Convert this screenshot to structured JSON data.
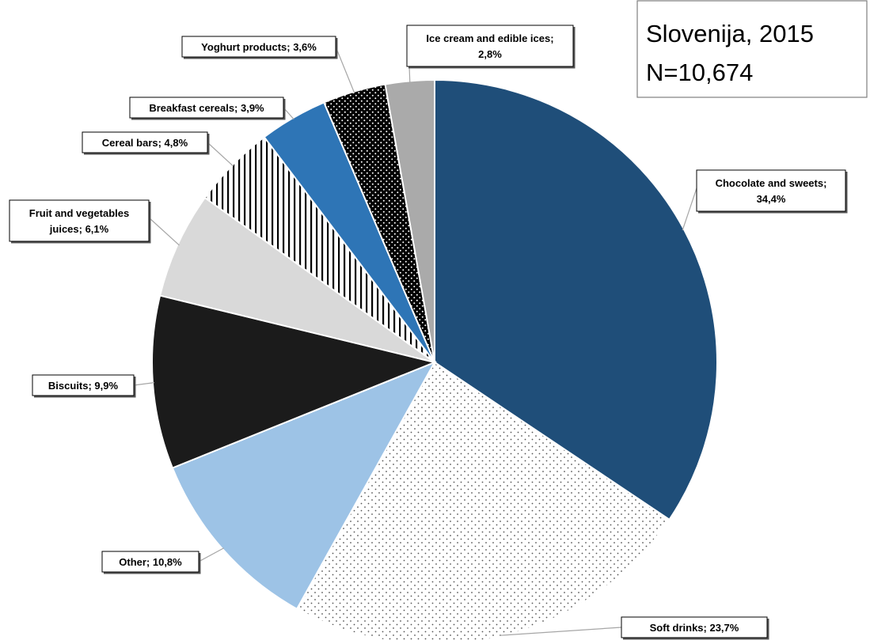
{
  "chart_data": {
    "type": "pie",
    "title": "Slovenija, 2015",
    "subtitle": "N=10,674",
    "slices": [
      {
        "name": "Chocolate and sweets",
        "value": 34.4,
        "label_lines": [
          "Chocolate and sweets;",
          "34,4%"
        ],
        "color": "#1f4e79",
        "pattern": "solid"
      },
      {
        "name": "Soft drinks",
        "value": 23.7,
        "label_lines": [
          "Soft drinks; 23,7%"
        ],
        "color": "#ffffff",
        "pattern": "dots"
      },
      {
        "name": "Other",
        "value": 10.8,
        "label_lines": [
          "Other; 10,8%"
        ],
        "color": "#9dc3e6",
        "pattern": "solid"
      },
      {
        "name": "Biscuits",
        "value": 9.9,
        "label_lines": [
          "Biscuits; 9,9%"
        ],
        "color": "#1b1b1b",
        "pattern": "solid"
      },
      {
        "name": "Fruit and vegetables juices",
        "value": 6.1,
        "label_lines": [
          "Fruit and vegetables",
          "juices; 6,1%"
        ],
        "color": "#d9d9d9",
        "pattern": "solid"
      },
      {
        "name": "Cereal bars",
        "value": 4.8,
        "label_lines": [
          "Cereal bars; 4,8%"
        ],
        "color": "#ffffff",
        "pattern": "vstripes"
      },
      {
        "name": "Breakfast cereals",
        "value": 3.9,
        "label_lines": [
          "Breakfast cereals; 3,9%"
        ],
        "color": "#2e75b6",
        "pattern": "solid"
      },
      {
        "name": "Yoghurt products",
        "value": 3.6,
        "label_lines": [
          "Yoghurt products; 3,6%"
        ],
        "color": "#000000",
        "pattern": "whitedots"
      },
      {
        "name": "Ice cream and edible ices",
        "value": 2.8,
        "label_lines": [
          "Ice cream and edible ices;",
          "2,8%"
        ],
        "color": "#aaaaaa",
        "pattern": "solid"
      }
    ],
    "start": "12 o'clock",
    "direction": "clockwise",
    "legend": "none",
    "data_labels": "outside callouts with leader lines"
  }
}
